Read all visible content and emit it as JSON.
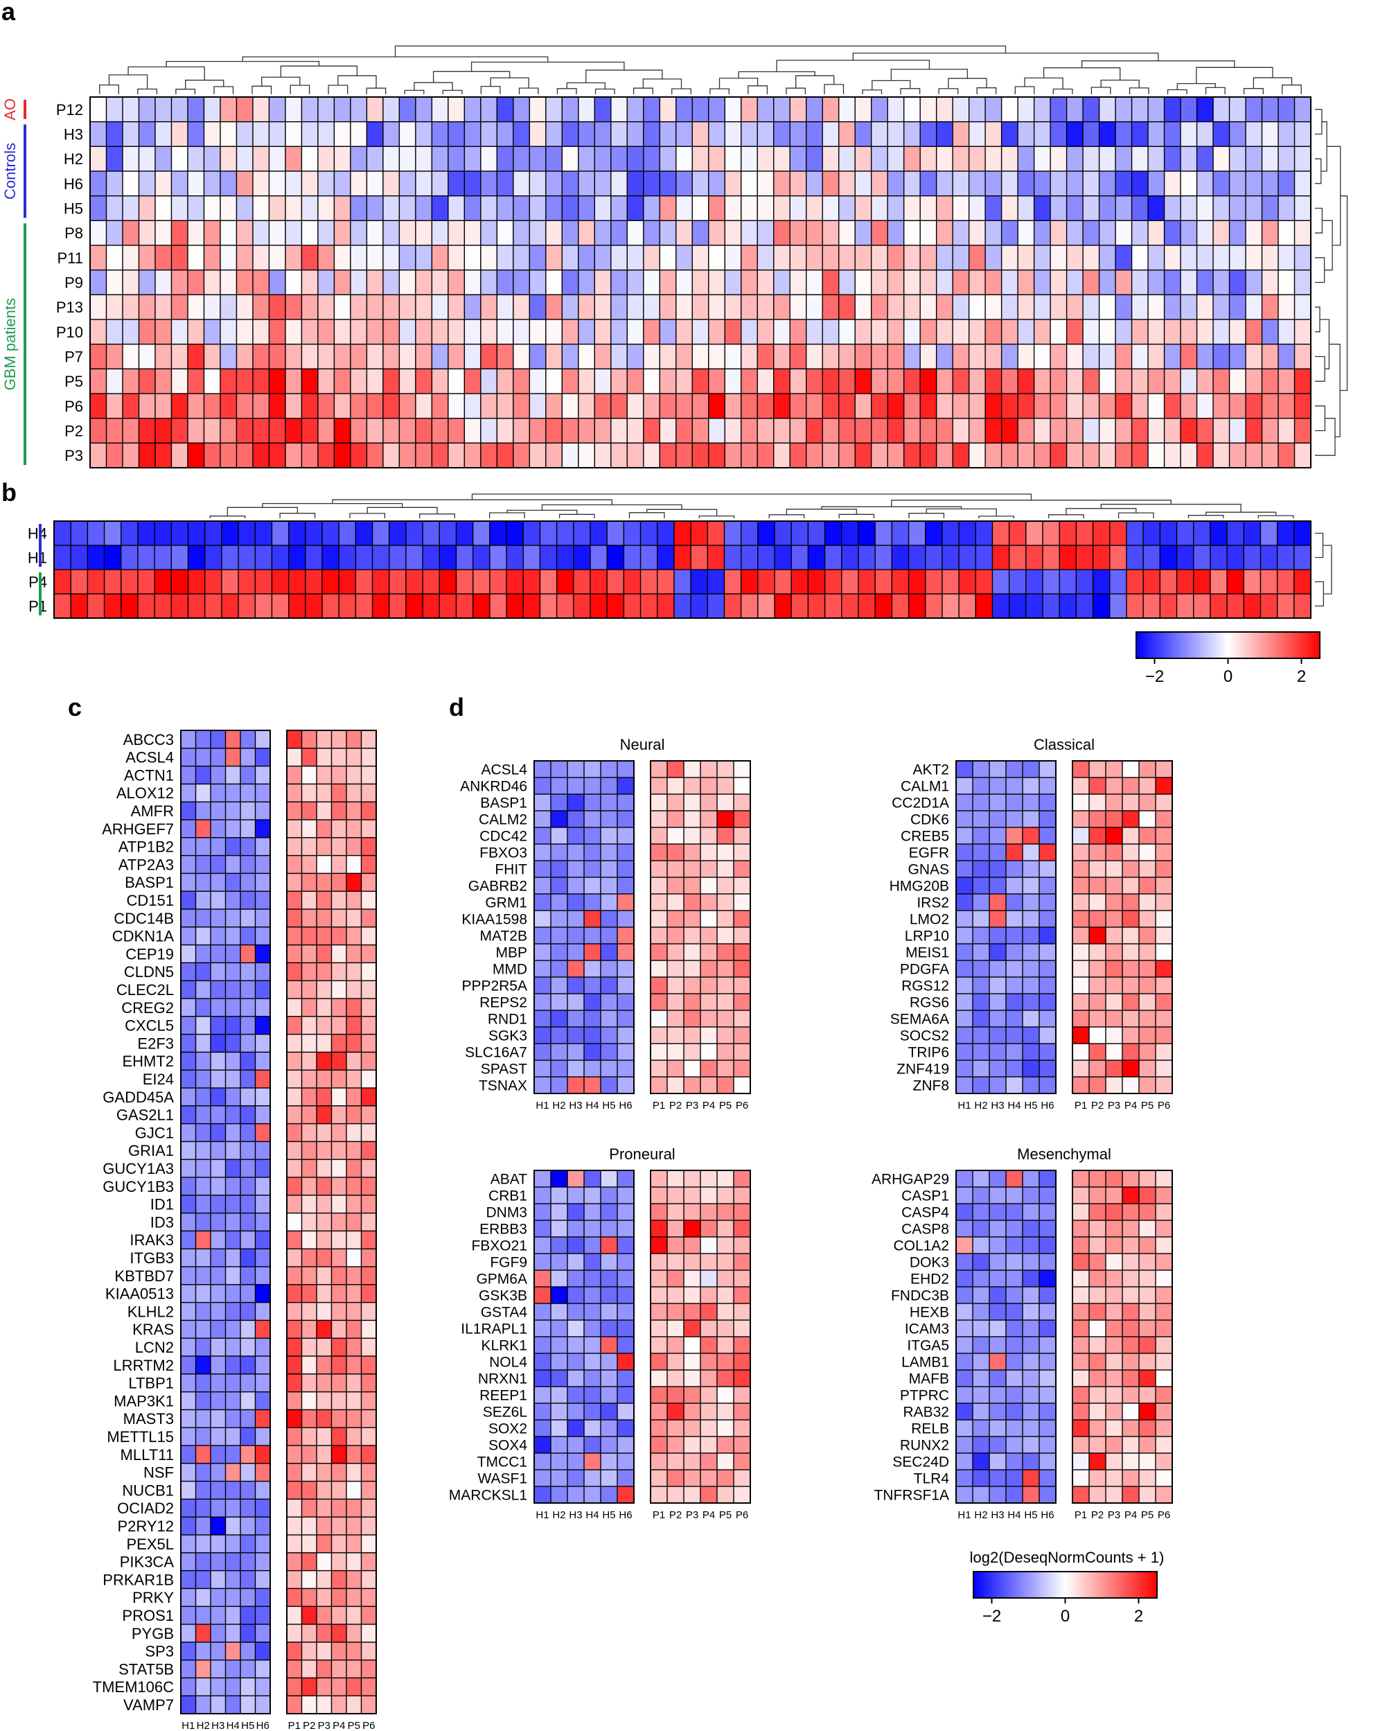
{
  "panel_labels": {
    "a": "a",
    "b": "b",
    "c": "c",
    "d": "d"
  },
  "colors": {
    "low": "#0000ff",
    "mid": "#ffffff",
    "high": "#ff0000",
    "ao": "#e32a2a",
    "controls": "#2b2bd6",
    "gbm": "#1f9b50"
  },
  "chart_data": [
    {
      "id": "panel-a",
      "type": "heatmap",
      "title": "",
      "rows": [
        "P12",
        "H3",
        "H2",
        "H6",
        "H5",
        "P8",
        "P11",
        "P9",
        "P13",
        "P10",
        "P7",
        "P5",
        "P6",
        "P2",
        "P3"
      ],
      "n_cols": 75,
      "row_groups": [
        {
          "label": "AO",
          "from": 0,
          "to": 0,
          "color": "#e32a2a"
        },
        {
          "label": "Controls",
          "from": 1,
          "to": 4,
          "color": "#2b2bd6"
        },
        {
          "label": "GBM patients",
          "from": 5,
          "to": 14,
          "color": "#1f9b50"
        }
      ],
      "row_bias": [
        -0.6,
        -0.6,
        -0.5,
        -0.6,
        -0.4,
        -0.1,
        0.1,
        0.0,
        0.3,
        0.3,
        0.3,
        1.0,
        1.2,
        1.3,
        1.3
      ],
      "ylim": [
        -2.5,
        2.5
      ]
    },
    {
      "id": "panel-b",
      "type": "heatmap",
      "title": "",
      "rows": [
        "H4",
        "H1",
        "P4",
        "P1"
      ],
      "n_cols": 75,
      "row_groups": [
        {
          "label": "",
          "from": 0,
          "to": 1,
          "color": "#2b2bd6"
        },
        {
          "label": "",
          "from": 2,
          "to": 3,
          "color": "#1f9b50"
        }
      ],
      "row_bias": [
        -1.0,
        -1.0,
        1.0,
        1.0
      ],
      "colorbar": {
        "ticks": [
          "−2",
          "0",
          "2"
        ],
        "range": [
          -2.5,
          2.5
        ]
      }
    },
    {
      "id": "panel-c",
      "type": "heatmap",
      "rows": [
        "ABCC3",
        "ACSL4",
        "ACTN1",
        "ALOX12",
        "AMFR",
        "ARHGEF7",
        "ATP1B2",
        "ATP2A3",
        "BASP1",
        "CD151",
        "CDC14B",
        "CDKN1A",
        "CEP19",
        "CLDN5",
        "CLEC2L",
        "CREG2",
        "CXCL5",
        "E2F3",
        "EHMT2",
        "EI24",
        "GADD45A",
        "GAS2L1",
        "GJC1",
        "GRIA1",
        "GUCY1A3",
        "GUCY1B3",
        "ID1",
        "ID3",
        "IRAK3",
        "ITGB3",
        "KBTBD7",
        "KIAA0513",
        "KLHL2",
        "KRAS",
        "LCN2",
        "LRRTM2",
        "LTBP1",
        "MAP3K1",
        "MAST3",
        "METTL15",
        "MLLT11",
        "NSF",
        "NUCB1",
        "OCIAD2",
        "P2RY12",
        "PEX5L",
        "PIK3CA",
        "PRKAR1B",
        "PRKY",
        "PROS1",
        "PYGB",
        "SP3",
        "STAT5B",
        "TMEM106C",
        "VAMP7"
      ],
      "left_columns": [
        "H1",
        "H2",
        "H3",
        "H4",
        "H5",
        "H6"
      ],
      "right_columns": [
        "P1",
        "P2",
        "P3",
        "P4",
        "P5",
        "P6"
      ]
    },
    {
      "id": "panel-d-neural",
      "type": "heatmap",
      "title": "Neural",
      "rows": [
        "ACSL4",
        "ANKRD46",
        "BASP1",
        "CALM2",
        "CDC42",
        "FBXO3",
        "FHIT",
        "GABRB2",
        "GRM1",
        "KIAA1598",
        "MAT2B",
        "MBP",
        "MMD",
        "PPP2R5A",
        "REPS2",
        "RND1",
        "SGK3",
        "SLC16A7",
        "SPAST",
        "TSNAX"
      ],
      "left_columns": [
        "H1",
        "H2",
        "H3",
        "H4",
        "H5",
        "H6"
      ],
      "right_columns": [
        "P1",
        "P2",
        "P3",
        "P4",
        "P5",
        "P6"
      ]
    },
    {
      "id": "panel-d-classical",
      "type": "heatmap",
      "title": "Classical",
      "rows": [
        "AKT2",
        "CALM1",
        "CC2D1A",
        "CDK6",
        "CREB5",
        "EGFR",
        "GNAS",
        "HMG20B",
        "IRS2",
        "LMO2",
        "LRP10",
        "MEIS1",
        "PDGFA",
        "RGS12",
        "RGS6",
        "SEMA6A",
        "SOCS2",
        "TRIP6",
        "ZNF419",
        "ZNF8"
      ],
      "left_columns": [
        "H1",
        "H2",
        "H3",
        "H4",
        "H5",
        "H6"
      ],
      "right_columns": [
        "P1",
        "P2",
        "P3",
        "P4",
        "P5",
        "P6"
      ]
    },
    {
      "id": "panel-d-proneural",
      "type": "heatmap",
      "title": "Proneural",
      "rows": [
        "ABAT",
        "CRB1",
        "DNM3",
        "ERBB3",
        "FBXO21",
        "FGF9",
        "GPM6A",
        "GSK3B",
        "GSTA4",
        "IL1RAPL1",
        "KLRK1",
        "NOL4",
        "NRXN1",
        "REEP1",
        "SEZ6L",
        "SOX2",
        "SOX4",
        "TMCC1",
        "WASF1",
        "MARCKSL1"
      ],
      "left_columns": [
        "H1",
        "H2",
        "H3",
        "H4",
        "H5",
        "H6"
      ],
      "right_columns": [
        "P1",
        "P2",
        "P3",
        "P4",
        "P5",
        "P6"
      ]
    },
    {
      "id": "panel-d-mesenchymal",
      "type": "heatmap",
      "title": "Mesenchymal",
      "rows": [
        "ARHGAP29",
        "CASP1",
        "CASP4",
        "CASP8",
        "COL1A2",
        "DOK3",
        "EHD2",
        "FNDC3B",
        "HEXB",
        "ICAM3",
        "ITGA5",
        "LAMB1",
        "MAFB",
        "PTPRC",
        "RAB32",
        "RELB",
        "RUNX2",
        "SEC24D",
        "TLR4",
        "TNFRSF1A"
      ],
      "left_columns": [
        "H1",
        "H2",
        "H3",
        "H4",
        "H5",
        "H6"
      ],
      "right_columns": [
        "P1",
        "P2",
        "P3",
        "P4",
        "P5",
        "P6"
      ]
    },
    {
      "id": "colorbar-d",
      "type": "colorbar",
      "title": "log2(DeseqNormCounts + 1)",
      "ticks": [
        "−2",
        "0",
        "2"
      ],
      "range": [
        -2.5,
        2.5
      ]
    }
  ]
}
